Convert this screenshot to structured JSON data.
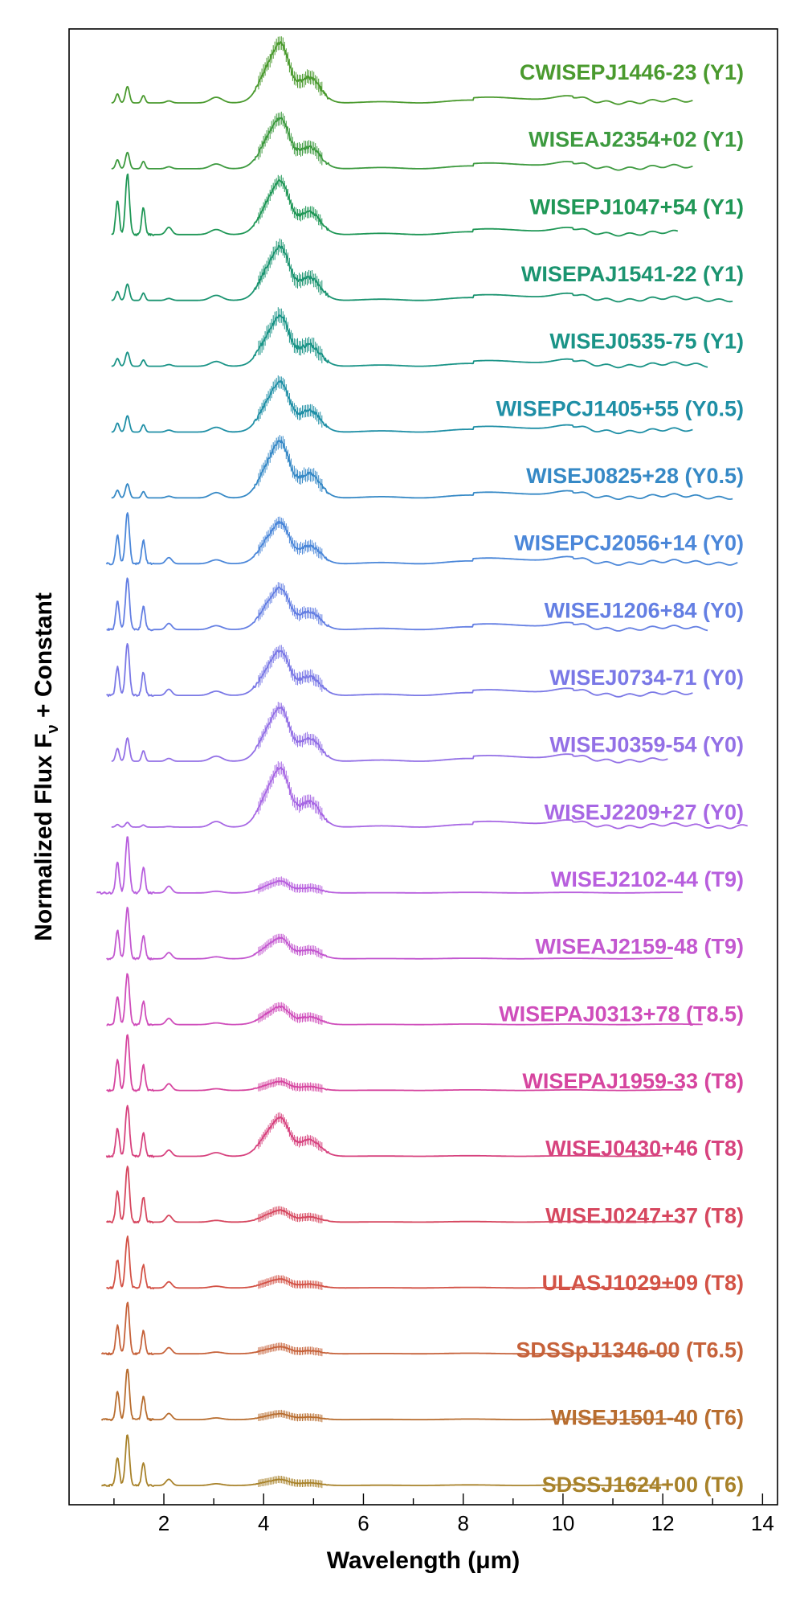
{
  "chart_data": {
    "type": "line",
    "xlabel": "Wavelength (μm)",
    "ylabel": "Normalized Flux F",
    "ylabel_sub": "ν",
    "ylabel_suffix": " + Constant",
    "xlim": [
      0.1,
      14.3
    ],
    "xticks": [
      2,
      4,
      6,
      8,
      10,
      12,
      14
    ],
    "grid": false,
    "series": [
      {
        "name": "CWISEPJ1446-23 (Y1)",
        "color": "#4a9a2e",
        "family": "Y",
        "x_start": 0.95,
        "x_end": 12.6,
        "nir": 0.35,
        "main": 1.0,
        "noise": 0.22
      },
      {
        "name": "WISEAJ2354+02 (Y1)",
        "color": "#3d9a3f",
        "family": "Y",
        "x_start": 0.95,
        "x_end": 12.6,
        "nir": 0.35,
        "main": 0.85,
        "noise": 0.2
      },
      {
        "name": "WISEPJ1047+54 (Y1)",
        "color": "#1f9756",
        "family": "Y",
        "x_start": 0.95,
        "x_end": 12.3,
        "nir": 1.3,
        "main": 0.9,
        "noise": 0.15
      },
      {
        "name": "WISEPAJ1541-22 (Y1)",
        "color": "#1b9470",
        "family": "Y",
        "x_start": 0.95,
        "x_end": 13.4,
        "nir": 0.35,
        "main": 0.9,
        "noise": 0.22
      },
      {
        "name": "WISEJ0535-75 (Y1)",
        "color": "#1a9487",
        "family": "Y",
        "x_start": 0.95,
        "x_end": 12.9,
        "nir": 0.3,
        "main": 0.85,
        "noise": 0.25
      },
      {
        "name": "WISEPCJ1405+55 (Y0.5)",
        "color": "#1f8fa6",
        "family": "Y",
        "x_start": 0.95,
        "x_end": 12.6,
        "nir": 0.35,
        "main": 0.85,
        "noise": 0.18
      },
      {
        "name": "WISEJ0825+28 (Y0.5)",
        "color": "#3689c6",
        "family": "Y",
        "x_start": 0.95,
        "x_end": 13.4,
        "nir": 0.3,
        "main": 0.95,
        "noise": 0.2
      },
      {
        "name": "WISEPCJ2056+14 (Y0)",
        "color": "#4b87d9",
        "family": "Y",
        "x_start": 0.85,
        "x_end": 13.5,
        "nir": 1.1,
        "main": 0.7,
        "noise": 0.15
      },
      {
        "name": "WISEJ1206+84 (Y0)",
        "color": "#647fe3",
        "family": "Y",
        "x_start": 0.85,
        "x_end": 12.9,
        "nir": 1.1,
        "main": 0.7,
        "noise": 0.15
      },
      {
        "name": "WISEJ0734-71 (Y0)",
        "color": "#7a78e6",
        "family": "Y",
        "x_start": 0.85,
        "x_end": 12.6,
        "nir": 1.1,
        "main": 0.75,
        "noise": 0.18
      },
      {
        "name": "WISEJ0359-54 (Y0)",
        "color": "#9370e6",
        "family": "Y",
        "x_start": 0.95,
        "x_end": 12.1,
        "nir": 0.5,
        "main": 0.9,
        "noise": 0.15
      },
      {
        "name": "WISEJ2209+27 (Y0)",
        "color": "#a767e4",
        "family": "Y",
        "x_start": 0.95,
        "x_end": 13.7,
        "nir": 0.1,
        "main": 1.0,
        "noise": 0.2
      },
      {
        "name": "WISEJ2102-44 (T9)",
        "color": "#b85fde",
        "family": "T",
        "x_start": 0.65,
        "x_end": 12.4,
        "nir": 1.2,
        "main": 0.2,
        "noise": 0.06
      },
      {
        "name": "WISEAJ2159-48 (T9)",
        "color": "#c358d0",
        "family": "T",
        "x_start": 0.85,
        "x_end": 12.2,
        "nir": 1.1,
        "main": 0.35,
        "noise": 0.08
      },
      {
        "name": "WISEPAJ0313+78 (T8.5)",
        "color": "#cf4dbb",
        "family": "T",
        "x_start": 0.85,
        "x_end": 12.8,
        "nir": 1.1,
        "main": 0.3,
        "noise": 0.08
      },
      {
        "name": "WISEPAJ1959-33 (T8)",
        "color": "#d6459f",
        "family": "T",
        "x_start": 0.85,
        "x_end": 12.4,
        "nir": 1.2,
        "main": 0.15,
        "noise": 0.05
      },
      {
        "name": "WISEJ0430+46 (T8)",
        "color": "#d7437f",
        "family": "T",
        "x_start": 0.85,
        "x_end": 12.0,
        "nir": 1.1,
        "main": 0.65,
        "noise": 0.1
      },
      {
        "name": "WISEJ0247+37 (T8)",
        "color": "#d6475f",
        "family": "T",
        "x_start": 0.85,
        "x_end": 12.3,
        "nir": 1.2,
        "main": 0.2,
        "noise": 0.05
      },
      {
        "name": "ULASJ1029+09 (T8)",
        "color": "#d35246",
        "family": "T",
        "x_start": 0.85,
        "x_end": 12.4,
        "nir": 1.1,
        "main": 0.15,
        "noise": 0.04
      },
      {
        "name": "SDSSpJ1346-00 (T6.5)",
        "color": "#c6623a",
        "family": "T",
        "x_start": 0.75,
        "x_end": 12.3,
        "nir": 1.1,
        "main": 0.12,
        "noise": 0.04
      },
      {
        "name": "WISEJ1501-40 (T6)",
        "color": "#b86d2f",
        "family": "T",
        "x_start": 0.75,
        "x_end": 12.3,
        "nir": 1.1,
        "main": 0.1,
        "noise": 0.03
      },
      {
        "name": "SDSSJ1624+00 (T6)",
        "color": "#a8822a",
        "family": "T",
        "x_start": 0.75,
        "x_end": 12.2,
        "nir": 1.1,
        "main": 0.1,
        "noise": 0.03
      }
    ]
  }
}
